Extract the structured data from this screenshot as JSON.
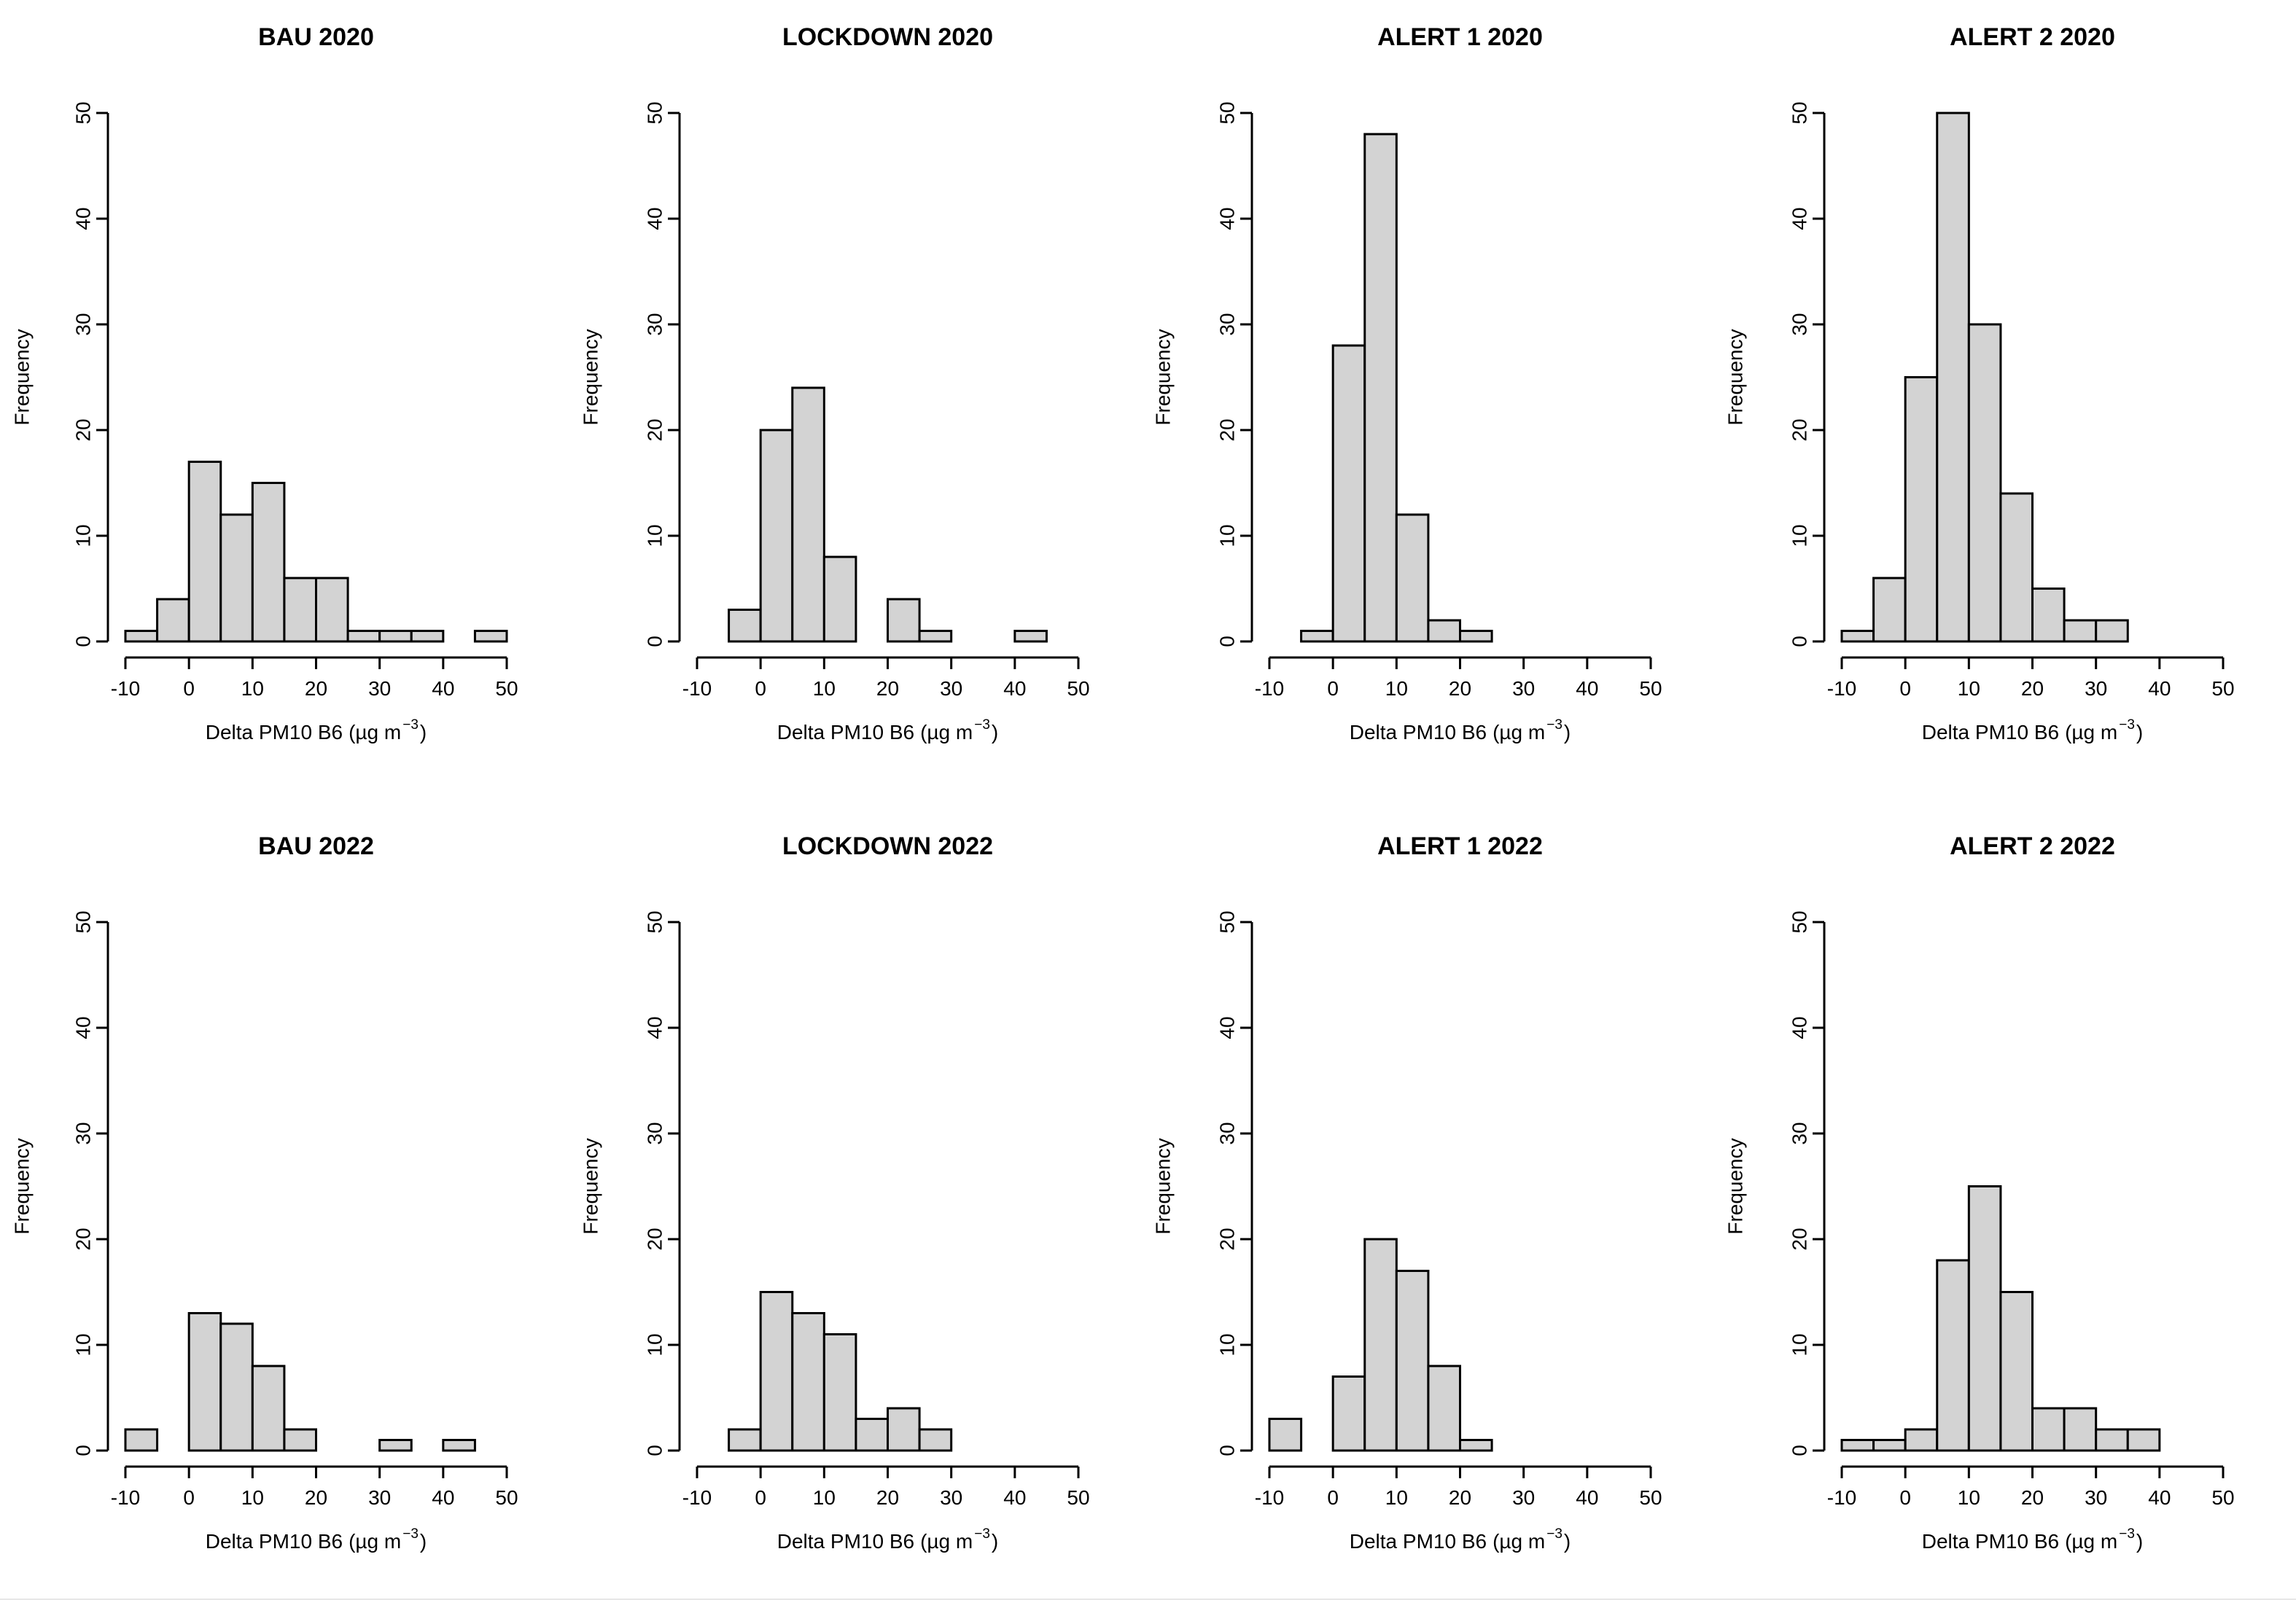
{
  "chart_data": [
    {
      "type": "histogram",
      "title": "BAU 2020",
      "xlabel": "Delta PM10 B6",
      "xlabel_unit": "(µg m",
      "xlabel_exponent": "−3",
      "xlabel_close": ")",
      "ylabel": "Frequency",
      "xlim": [
        -10,
        50
      ],
      "ylim": [
        0,
        50
      ],
      "xticks": [
        -10,
        0,
        10,
        20,
        30,
        40,
        50
      ],
      "yticks": [
        0,
        10,
        20,
        30,
        40,
        50
      ],
      "bin_width": 5,
      "bins": [
        [
          -10,
          1
        ],
        [
          -5,
          4
        ],
        [
          0,
          17
        ],
        [
          5,
          12
        ],
        [
          10,
          15
        ],
        [
          15,
          6
        ],
        [
          20,
          6
        ],
        [
          25,
          1
        ],
        [
          30,
          1
        ],
        [
          35,
          1
        ],
        [
          40,
          0
        ],
        [
          45,
          1
        ]
      ]
    },
    {
      "type": "histogram",
      "title": "LOCKDOWN 2020",
      "xlabel": "Delta PM10 B6",
      "xlabel_unit": "(µg m",
      "xlabel_exponent": "−3",
      "xlabel_close": ")",
      "ylabel": "Frequency",
      "xlim": [
        -10,
        50
      ],
      "ylim": [
        0,
        50
      ],
      "xticks": [
        -10,
        0,
        10,
        20,
        30,
        40,
        50
      ],
      "yticks": [
        0,
        10,
        20,
        30,
        40,
        50
      ],
      "bin_width": 5,
      "bins": [
        [
          -5,
          3
        ],
        [
          0,
          20
        ],
        [
          5,
          24
        ],
        [
          10,
          8
        ],
        [
          15,
          0
        ],
        [
          20,
          4
        ],
        [
          25,
          1
        ],
        [
          30,
          0
        ],
        [
          35,
          0
        ],
        [
          40,
          1
        ]
      ]
    },
    {
      "type": "histogram",
      "title": "ALERT 1 2020",
      "xlabel": "Delta PM10 B6",
      "xlabel_unit": "(µg m",
      "xlabel_exponent": "−3",
      "xlabel_close": ")",
      "ylabel": "Frequency",
      "xlim": [
        -10,
        50
      ],
      "ylim": [
        0,
        50
      ],
      "xticks": [
        -10,
        0,
        10,
        20,
        30,
        40,
        50
      ],
      "yticks": [
        0,
        10,
        20,
        30,
        40,
        50
      ],
      "bin_width": 5,
      "bins": [
        [
          -5,
          1
        ],
        [
          0,
          28
        ],
        [
          5,
          48
        ],
        [
          10,
          12
        ],
        [
          15,
          2
        ],
        [
          20,
          1
        ]
      ]
    },
    {
      "type": "histogram",
      "title": "ALERT 2 2020",
      "xlabel": "Delta PM10 B6",
      "xlabel_unit": "(µg m",
      "xlabel_exponent": "−3",
      "xlabel_close": ")",
      "ylabel": "Frequency",
      "xlim": [
        -10,
        50
      ],
      "ylim": [
        0,
        50
      ],
      "xticks": [
        -10,
        0,
        10,
        20,
        30,
        40,
        50
      ],
      "yticks": [
        0,
        10,
        20,
        30,
        40,
        50
      ],
      "bin_width": 5,
      "bins": [
        [
          -10,
          1
        ],
        [
          -5,
          6
        ],
        [
          0,
          25
        ],
        [
          5,
          50
        ],
        [
          10,
          30
        ],
        [
          15,
          14
        ],
        [
          20,
          5
        ],
        [
          25,
          2
        ],
        [
          30,
          2
        ]
      ]
    },
    {
      "type": "histogram",
      "title": "BAU 2022",
      "xlabel": "Delta PM10 B6",
      "xlabel_unit": "(µg m",
      "xlabel_exponent": "−3",
      "xlabel_close": ")",
      "ylabel": "Frequency",
      "xlim": [
        -10,
        50
      ],
      "ylim": [
        0,
        50
      ],
      "xticks": [
        -10,
        0,
        10,
        20,
        30,
        40,
        50
      ],
      "yticks": [
        0,
        10,
        20,
        30,
        40,
        50
      ],
      "bin_width": 5,
      "bins": [
        [
          -10,
          2
        ],
        [
          -5,
          0
        ],
        [
          0,
          13
        ],
        [
          5,
          12
        ],
        [
          10,
          8
        ],
        [
          15,
          2
        ],
        [
          20,
          0
        ],
        [
          25,
          0
        ],
        [
          30,
          1
        ],
        [
          35,
          0
        ],
        [
          40,
          1
        ]
      ]
    },
    {
      "type": "histogram",
      "title": "LOCKDOWN 2022",
      "xlabel": "Delta PM10 B6",
      "xlabel_unit": "(µg m",
      "xlabel_exponent": "−3",
      "xlabel_close": ")",
      "ylabel": "Frequency",
      "xlim": [
        -10,
        50
      ],
      "ylim": [
        0,
        50
      ],
      "xticks": [
        -10,
        0,
        10,
        20,
        30,
        40,
        50
      ],
      "yticks": [
        0,
        10,
        20,
        30,
        40,
        50
      ],
      "bin_width": 5,
      "bins": [
        [
          -5,
          2
        ],
        [
          0,
          15
        ],
        [
          5,
          13
        ],
        [
          10,
          11
        ],
        [
          15,
          3
        ],
        [
          20,
          4
        ],
        [
          25,
          2
        ]
      ]
    },
    {
      "type": "histogram",
      "title": "ALERT 1 2022",
      "xlabel": "Delta PM10 B6",
      "xlabel_unit": "(µg m",
      "xlabel_exponent": "−3",
      "xlabel_close": ")",
      "ylabel": "Frequency",
      "xlim": [
        -10,
        50
      ],
      "ylim": [
        0,
        50
      ],
      "xticks": [
        -10,
        0,
        10,
        20,
        30,
        40,
        50
      ],
      "yticks": [
        0,
        10,
        20,
        30,
        40,
        50
      ],
      "bin_width": 5,
      "bins": [
        [
          -10,
          3
        ],
        [
          -5,
          0
        ],
        [
          0,
          7
        ],
        [
          5,
          20
        ],
        [
          10,
          17
        ],
        [
          15,
          8
        ],
        [
          20,
          1
        ]
      ]
    },
    {
      "type": "histogram",
      "title": "ALERT 2 2022",
      "xlabel": "Delta PM10 B6",
      "xlabel_unit": "(µg m",
      "xlabel_exponent": "−3",
      "xlabel_close": ")",
      "ylabel": "Frequency",
      "xlim": [
        -10,
        50
      ],
      "ylim": [
        0,
        50
      ],
      "xticks": [
        -10,
        0,
        10,
        20,
        30,
        40,
        50
      ],
      "yticks": [
        0,
        10,
        20,
        30,
        40,
        50
      ],
      "bin_width": 5,
      "bins": [
        [
          -10,
          1
        ],
        [
          -5,
          1
        ],
        [
          0,
          2
        ],
        [
          5,
          18
        ],
        [
          10,
          25
        ],
        [
          15,
          15
        ],
        [
          20,
          4
        ],
        [
          25,
          4
        ],
        [
          30,
          2
        ],
        [
          35,
          2
        ]
      ]
    }
  ]
}
